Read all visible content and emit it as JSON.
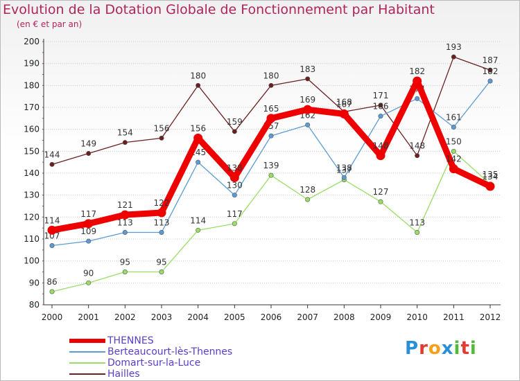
{
  "title": "Evolution de la Dotation Globale de Fonctionnement par Habitant",
  "subtitle": "(en € et par an)",
  "logo": {
    "text": "Proxiti",
    "letters": [
      {
        "ch": "P",
        "color": "#2a8fd6"
      },
      {
        "ch": "r",
        "color": "#e23b2f"
      },
      {
        "ch": "o",
        "color": "#f5a21b"
      },
      {
        "ch": "x",
        "color": "#2a8fd6"
      },
      {
        "ch": "i",
        "color": "#53b83b"
      },
      {
        "ch": "t",
        "color": "#e23b2f"
      },
      {
        "ch": "i",
        "color": "#53b83b"
      }
    ]
  },
  "chart_data": {
    "type": "line",
    "title": "Evolution de la Dotation Globale de Fonctionnement par Habitant",
    "ylabel": "(en € et par an)",
    "xlabel": "",
    "ylim": [
      80,
      200
    ],
    "yticks": [
      80,
      90,
      100,
      110,
      120,
      130,
      140,
      150,
      160,
      170,
      180,
      190,
      200
    ],
    "grid": "horizontal dotted",
    "legend": "bottom-left",
    "categories": [
      "2000",
      "2001",
      "2002",
      "2003",
      "2004",
      "2005",
      "2006",
      "2007",
      "2008",
      "2009",
      "2010",
      "2011",
      "2012"
    ],
    "series": [
      {
        "name": "Hailles",
        "color": "#6b1f1f",
        "values": [
          144,
          149,
          154,
          156,
          180,
          159,
          180,
          183,
          168,
          171,
          148,
          193,
          187
        ]
      },
      {
        "name": "Domart-sur-la-Luce",
        "color": "#99dd66",
        "values": [
          86,
          90,
          95,
          95,
          114,
          117,
          139,
          128,
          137,
          127,
          113,
          150,
          135
        ]
      },
      {
        "name": "Berteaucourt-lès-Thennes",
        "color": "#5b9bd5",
        "values": [
          107,
          109,
          113,
          113,
          145,
          130,
          157,
          162,
          138,
          166,
          174,
          161,
          182
        ]
      },
      {
        "name": "THENNES",
        "color": "#ee0000",
        "values": [
          114,
          117,
          121,
          122,
          156,
          138,
          165,
          169,
          167,
          148,
          182,
          142,
          134
        ]
      }
    ]
  },
  "legend_items": [
    {
      "name": "THENNES",
      "color": "#ee0000"
    },
    {
      "name": "Berteaucourt-lès-Thennes",
      "color": "#5b9bd5"
    },
    {
      "name": "Domart-sur-la-Luce",
      "color": "#99dd66"
    },
    {
      "name": "Hailles",
      "color": "#6b1f1f"
    }
  ]
}
